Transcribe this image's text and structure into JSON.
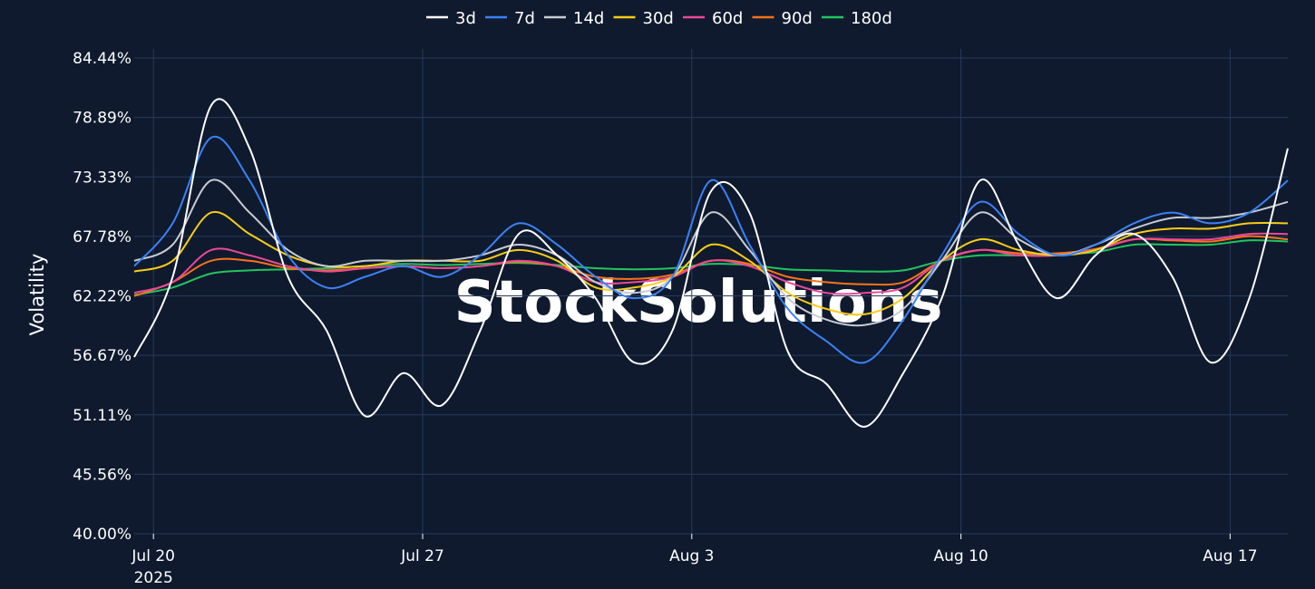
{
  "chart_data": {
    "type": "line",
    "ylabel": "Volatility",
    "xlabel": "",
    "watermark": "StockSolutions",
    "ylim": [
      40.0,
      84.44
    ],
    "y_ticks": [
      "84.44%",
      "78.89%",
      "73.33%",
      "67.78%",
      "62.22%",
      "56.67%",
      "51.11%",
      "45.56%",
      "40.00%"
    ],
    "y_tick_values": [
      84.44,
      78.89,
      73.33,
      67.78,
      62.22,
      56.67,
      51.11,
      45.56,
      40.0
    ],
    "xlim": [
      "2025-07-19 12:00",
      "2025-08-18 12:00"
    ],
    "x_ticks": [
      {
        "date": "2025-07-20",
        "label": "Jul 20",
        "sublabel": "2025"
      },
      {
        "date": "2025-07-27",
        "label": "Jul 27",
        "sublabel": ""
      },
      {
        "date": "2025-08-03",
        "label": "Aug 3",
        "sublabel": ""
      },
      {
        "date": "2025-08-10",
        "label": "Aug 10",
        "sublabel": ""
      },
      {
        "date": "2025-08-17",
        "label": "Aug 17",
        "sublabel": ""
      }
    ],
    "grid": true,
    "legend_position": "top-center",
    "x": [
      "2025-07-19",
      "2025-07-20",
      "2025-07-21",
      "2025-07-22",
      "2025-07-23",
      "2025-07-24",
      "2025-07-25",
      "2025-07-26",
      "2025-07-27",
      "2025-07-28",
      "2025-07-29",
      "2025-07-30",
      "2025-07-31",
      "2025-08-01",
      "2025-08-02",
      "2025-08-03",
      "2025-08-04",
      "2025-08-05",
      "2025-08-06",
      "2025-08-07",
      "2025-08-08",
      "2025-08-09",
      "2025-08-10",
      "2025-08-11",
      "2025-08-12",
      "2025-08-13",
      "2025-08-14",
      "2025-08-15",
      "2025-08-16",
      "2025-08-17",
      "2025-08-18"
    ],
    "series": [
      {
        "name": "3d",
        "color": "#ffffff",
        "values": [
          56.5,
          64.0,
          80.0,
          76.0,
          64.0,
          59.0,
          51.0,
          55.0,
          52.0,
          59.0,
          68.0,
          66.0,
          62.0,
          56.0,
          59.0,
          72.0,
          70.0,
          57.0,
          54.0,
          50.0,
          55.0,
          62.0,
          73.0,
          67.0,
          62.0,
          66.0,
          68.0,
          64.0,
          56.0,
          62.0,
          76.0
        ]
      },
      {
        "name": "7d",
        "color": "#3b82f6",
        "values": [
          65.0,
          69.0,
          77.0,
          73.0,
          66.0,
          63.0,
          64.0,
          65.0,
          64.0,
          66.0,
          69.0,
          67.0,
          64.0,
          62.0,
          64.0,
          73.0,
          67.0,
          61.0,
          58.0,
          56.0,
          60.0,
          66.0,
          71.0,
          68.0,
          66.0,
          67.0,
          69.0,
          70.0,
          69.0,
          70.0,
          73.0
        ]
      },
      {
        "name": "14d",
        "color": "#c8ccd4",
        "values": [
          65.5,
          67.0,
          73.0,
          70.0,
          66.5,
          65.0,
          65.5,
          65.5,
          65.5,
          66.0,
          67.0,
          66.0,
          63.5,
          62.5,
          64.0,
          70.0,
          66.5,
          62.0,
          60.0,
          59.5,
          61.0,
          65.5,
          70.0,
          67.5,
          66.0,
          67.0,
          68.5,
          69.5,
          69.5,
          70.0,
          71.0
        ]
      },
      {
        "name": "30d",
        "color": "#facc15",
        "values": [
          64.5,
          65.5,
          70.0,
          68.0,
          66.0,
          65.0,
          65.0,
          65.5,
          65.5,
          65.5,
          66.5,
          65.5,
          63.0,
          63.0,
          64.0,
          67.0,
          65.5,
          62.5,
          61.0,
          60.5,
          62.0,
          65.5,
          67.5,
          66.5,
          66.0,
          66.5,
          68.0,
          68.5,
          68.5,
          69.0,
          69.0
        ]
      },
      {
        "name": "60d",
        "color": "#ec4899",
        "values": [
          62.5,
          63.5,
          66.5,
          66.0,
          65.0,
          64.5,
          64.8,
          65.0,
          64.8,
          65.0,
          65.5,
          65.0,
          63.5,
          63.5,
          64.0,
          65.5,
          65.0,
          63.5,
          62.5,
          62.5,
          63.0,
          65.5,
          66.5,
          66.0,
          66.0,
          66.5,
          67.5,
          67.5,
          67.5,
          68.0,
          68.0
        ]
      },
      {
        "name": "90d",
        "color": "#f97316",
        "values": [
          62.2,
          63.5,
          65.5,
          65.5,
          64.8,
          64.6,
          64.8,
          65.0,
          64.8,
          65.0,
          65.4,
          65.0,
          64.0,
          63.8,
          64.2,
          65.5,
          65.2,
          64.0,
          63.5,
          63.3,
          63.5,
          65.5,
          66.5,
          66.2,
          66.2,
          66.6,
          67.5,
          67.4,
          67.3,
          67.8,
          67.5
        ]
      },
      {
        "name": "180d",
        "color": "#22c55e",
        "values": [
          62.3,
          63.0,
          64.3,
          64.6,
          64.7,
          64.8,
          65.0,
          65.2,
          65.1,
          65.2,
          65.3,
          65.1,
          64.8,
          64.7,
          64.8,
          65.2,
          65.1,
          64.7,
          64.6,
          64.5,
          64.6,
          65.5,
          66.0,
          66.0,
          66.1,
          66.3,
          67.0,
          67.0,
          67.0,
          67.4,
          67.3
        ]
      }
    ]
  }
}
